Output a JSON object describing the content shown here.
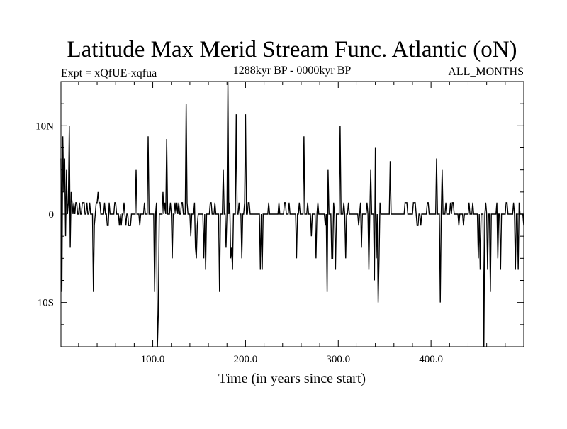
{
  "header": {
    "title": "Latitude Max Merid Stream Func. Atlantic (oN)",
    "expt": "Expt = xQfUE-xqfua",
    "period": "1288kyr BP - 0000kyr BP",
    "months": "ALL_MONTHS"
  },
  "chart_data": {
    "type": "line",
    "title": "Latitude Max Merid Stream Func. Atlantic (oN)",
    "xlabel": "Time (in years since start)",
    "ylabel": "",
    "xlim": [
      1,
      500
    ],
    "ylim": [
      -15,
      15
    ],
    "x_ticks": [
      {
        "value": 100,
        "label": "100.0"
      },
      {
        "value": 200,
        "label": "200.0"
      },
      {
        "value": 300,
        "label": "300.0"
      },
      {
        "value": 400,
        "label": "400.0"
      }
    ],
    "y_ticks": [
      {
        "value": 10,
        "label": "10N"
      },
      {
        "value": 0,
        "label": "0"
      },
      {
        "value": -10,
        "label": "10S"
      }
    ],
    "grid": false,
    "series": [
      {
        "color": "#000000",
        "x_start": 1,
        "x_step": 1,
        "values": [
          6.3,
          -8.8,
          8.8,
          2.5,
          6.3,
          -2.5,
          5.0,
          0,
          1.3,
          10.0,
          -3.8,
          2.5,
          1.3,
          0,
          1.3,
          0,
          1.3,
          1.3,
          0,
          0,
          1.3,
          0,
          0,
          1.3,
          1.3,
          1.3,
          0,
          0,
          1.3,
          0,
          0,
          1.3,
          0,
          0,
          0,
          -8.8,
          -1.3,
          0,
          1.3,
          1.3,
          2.5,
          1.3,
          1.3,
          0,
          0,
          0,
          0,
          1.3,
          0,
          0,
          -1.3,
          -1.3,
          1.3,
          0,
          0,
          0,
          0,
          0,
          1.3,
          1.3,
          0,
          0,
          0,
          -1.3,
          0,
          -1.3,
          0,
          0,
          1.3,
          0,
          -1.3,
          0,
          0,
          -1.3,
          -1.3,
          -1.3,
          0,
          0,
          0,
          0,
          0,
          5.0,
          0,
          0,
          0,
          -1.3,
          0,
          0,
          0,
          0,
          1.3,
          0,
          0,
          0,
          8.8,
          0,
          0,
          0,
          0,
          0,
          0,
          -8.8,
          0,
          1.3,
          -15.0,
          -11.3,
          0,
          0,
          0,
          0,
          2.5,
          0,
          1.3,
          0,
          8.5,
          0,
          0,
          0,
          1.3,
          0,
          -5.0,
          0,
          0,
          1.3,
          0,
          1.3,
          0,
          1.3,
          0,
          0,
          1.3,
          1.3,
          0,
          0,
          0,
          12.5,
          1.3,
          0,
          0,
          0,
          -2.5,
          0,
          0,
          0,
          1.3,
          -3.8,
          -5.0,
          -1.3,
          0,
          0,
          0,
          0,
          0,
          0,
          -5.0,
          0,
          -6.3,
          0,
          0,
          0,
          0,
          1.3,
          1.3,
          0,
          0,
          0,
          1.3,
          0,
          0,
          0,
          0,
          -8.8,
          0,
          0,
          0,
          5.0,
          0,
          0,
          -3.8,
          0,
          15.0,
          0,
          1.3,
          -5.0,
          -3.8,
          -6.3,
          0,
          0,
          0,
          11.3,
          0,
          0,
          1.3,
          0,
          0,
          -5.0,
          0,
          0,
          1.3,
          11.3,
          0,
          0,
          1.3,
          1.3,
          0,
          0,
          0,
          0,
          0,
          0,
          0,
          0,
          0,
          0,
          0,
          -6.3,
          0,
          -6.3,
          0,
          0,
          0,
          0,
          0,
          0,
          1.3,
          0,
          0,
          0,
          0,
          0,
          0,
          0,
          0,
          0,
          0,
          1.3,
          0,
          0,
          0,
          0,
          0,
          1.3,
          1.3,
          0,
          0,
          0,
          1.3,
          0,
          0,
          0,
          0,
          0,
          0,
          0,
          -5.0,
          0,
          0,
          1.3,
          0,
          0,
          0,
          0,
          8.8,
          0,
          0,
          0,
          1.3,
          0,
          0,
          0,
          -2.5,
          0,
          0,
          0,
          0,
          -5.0,
          0,
          1.3,
          0,
          0,
          0,
          0,
          0,
          0,
          0,
          -1.3,
          0,
          -8.8,
          5.0,
          0,
          0,
          0,
          -5.0,
          -5.0,
          1.3,
          0,
          -6.3,
          0,
          0,
          0,
          0,
          10.0,
          0,
          0,
          0,
          1.3,
          0,
          -5.0,
          0,
          0,
          1.3,
          0,
          0,
          0,
          0,
          0,
          0,
          0,
          0,
          0,
          0,
          -1.3,
          0,
          1.3,
          -3.8,
          0,
          0,
          0,
          0,
          0,
          1.3,
          0,
          -6.3,
          0,
          5.0,
          0,
          0,
          0,
          -7.5,
          7.5,
          -5.0,
          0,
          -10.0,
          -5.0,
          1.3,
          0,
          0,
          0,
          0,
          0,
          0,
          0,
          0,
          0,
          0,
          6.0,
          0,
          0,
          0,
          0,
          0,
          0,
          0,
          0,
          0,
          0,
          0,
          0,
          0,
          0,
          0,
          1.3,
          1.3,
          1.3,
          0,
          0,
          0,
          0,
          0,
          0,
          1.3,
          1.3,
          1.3,
          0,
          -1.3,
          -1.3,
          0,
          0,
          -1.3,
          0,
          0,
          0,
          0,
          0,
          0,
          1.3,
          1.3,
          0,
          0,
          0,
          0,
          0,
          0,
          0,
          0,
          6.3,
          0,
          0,
          0,
          -10.0,
          0,
          5.0,
          0,
          0,
          0,
          1.3,
          0,
          0,
          0,
          0,
          1.3,
          0,
          1.3,
          1.3,
          0,
          0,
          0,
          0,
          0,
          -1.3,
          0,
          0,
          0,
          0,
          -1.3,
          0,
          0,
          0,
          0,
          0,
          1.3,
          0,
          0,
          0,
          1.3,
          0,
          0,
          0,
          0,
          0,
          -5.0,
          0,
          -6.3,
          0,
          0,
          0,
          -15.0,
          0,
          1.3,
          0,
          -6.3,
          0,
          0,
          -8.8,
          0,
          0,
          0,
          0,
          0,
          0,
          1.3,
          -5.0,
          0,
          0,
          -6.3,
          0,
          0,
          0,
          0,
          0,
          1.3,
          1.3,
          0,
          0,
          0,
          0,
          0,
          0,
          1.3,
          0,
          -6.3,
          0,
          0,
          -6.3,
          1.3,
          0,
          0,
          0,
          0,
          -1.3
        ]
      }
    ]
  }
}
